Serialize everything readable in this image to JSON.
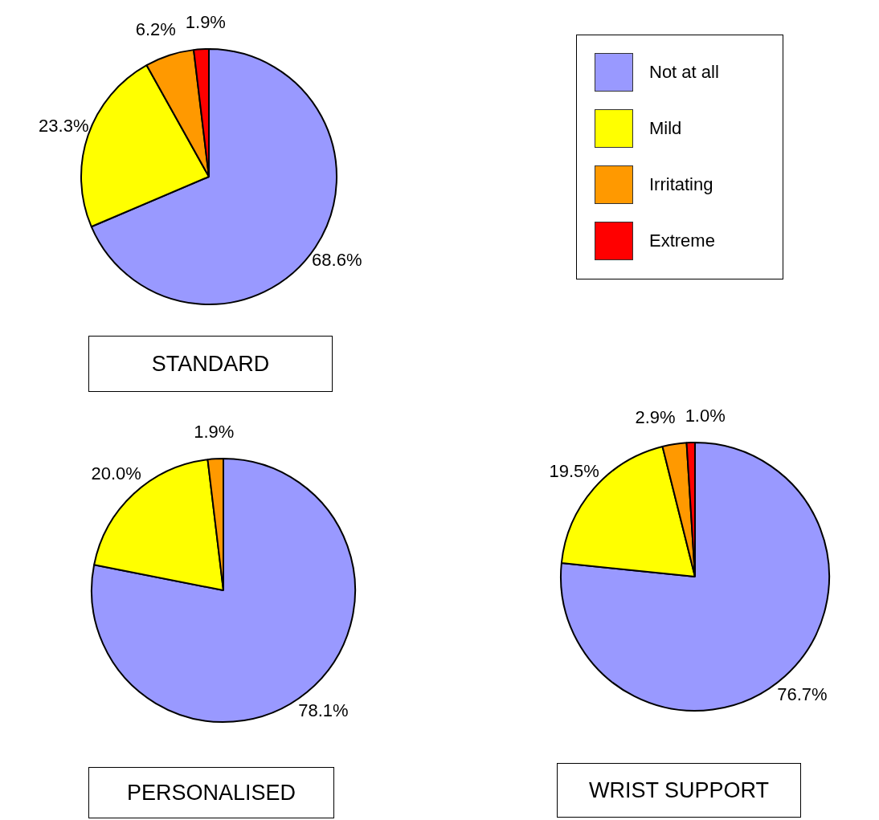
{
  "chart_data": [
    {
      "type": "pie",
      "title": "STANDARD",
      "categories": [
        "Not at all",
        "Mild",
        "Irritating",
        "Extreme"
      ],
      "values": [
        68.6,
        23.3,
        6.2,
        1.9
      ],
      "colors": [
        "#9999ff",
        "#ffff00",
        "#ff9900",
        "#ff0000"
      ],
      "value_labels": [
        "68.6%",
        "23.3%",
        "6.2%",
        "1.9%"
      ],
      "legend": "right"
    },
    {
      "type": "pie",
      "title": "PERSONALISED",
      "values": [
        78.1,
        20.0,
        1.9
      ],
      "colors": [
        "#9999ff",
        "#ffff00",
        "#ff9900"
      ],
      "value_labels": [
        "78.1%",
        "20.0%",
        "1.9%"
      ]
    },
    {
      "type": "pie",
      "title": "WRIST SUPPORT",
      "values": [
        76.7,
        19.5,
        2.9,
        1.0
      ],
      "colors": [
        "#9999ff",
        "#ffff00",
        "#ff9900",
        "#ff0000"
      ],
      "value_labels": [
        "76.7%",
        "19.5%",
        "2.9%",
        "1.0%"
      ]
    }
  ]
}
